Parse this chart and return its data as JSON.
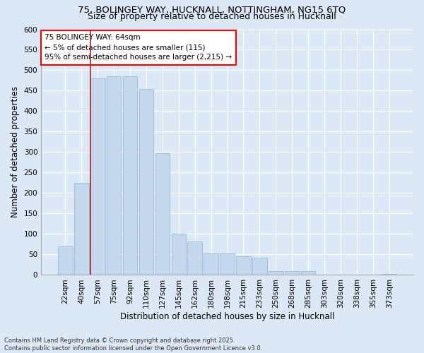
{
  "title1": "75, BOLINGEY WAY, HUCKNALL, NOTTINGHAM, NG15 6TQ",
  "title2": "Size of property relative to detached houses in Hucknall",
  "xlabel": "Distribution of detached houses by size in Hucknall",
  "ylabel": "Number of detached properties",
  "footer1": "Contains HM Land Registry data © Crown copyright and database right 2025.",
  "footer2": "Contains public sector information licensed under the Open Government Licence v3.0.",
  "annotation_title": "75 BOLINGEY WAY: 64sqm",
  "annotation_line1": "← 5% of detached houses are smaller (115)",
  "annotation_line2": "95% of semi-detached houses are larger (2,215) →",
  "bar_color": "#c5d8ed",
  "bar_edge_color": "#8ab4d4",
  "vline_color": "#aa2222",
  "categories": [
    "22sqm",
    "40sqm",
    "57sqm",
    "75sqm",
    "92sqm",
    "110sqm",
    "127sqm",
    "145sqm",
    "162sqm",
    "180sqm",
    "198sqm",
    "215sqm",
    "233sqm",
    "250sqm",
    "268sqm",
    "285sqm",
    "303sqm",
    "320sqm",
    "338sqm",
    "355sqm",
    "373sqm"
  ],
  "values": [
    70,
    225,
    480,
    485,
    485,
    455,
    298,
    100,
    82,
    53,
    53,
    45,
    42,
    10,
    10,
    10,
    0,
    0,
    0,
    0,
    2
  ],
  "ylim": [
    0,
    600
  ],
  "yticks": [
    0,
    50,
    100,
    150,
    200,
    250,
    300,
    350,
    400,
    450,
    500,
    550,
    600
  ],
  "bg_color": "#dce8f5",
  "plot_bg_color": "#dce8f5",
  "title_fontsize": 9.5,
  "subtitle_fontsize": 9,
  "axis_label_fontsize": 8.5,
  "tick_fontsize": 7.5,
  "footer_fontsize": 6,
  "annotation_fontsize": 7.5
}
